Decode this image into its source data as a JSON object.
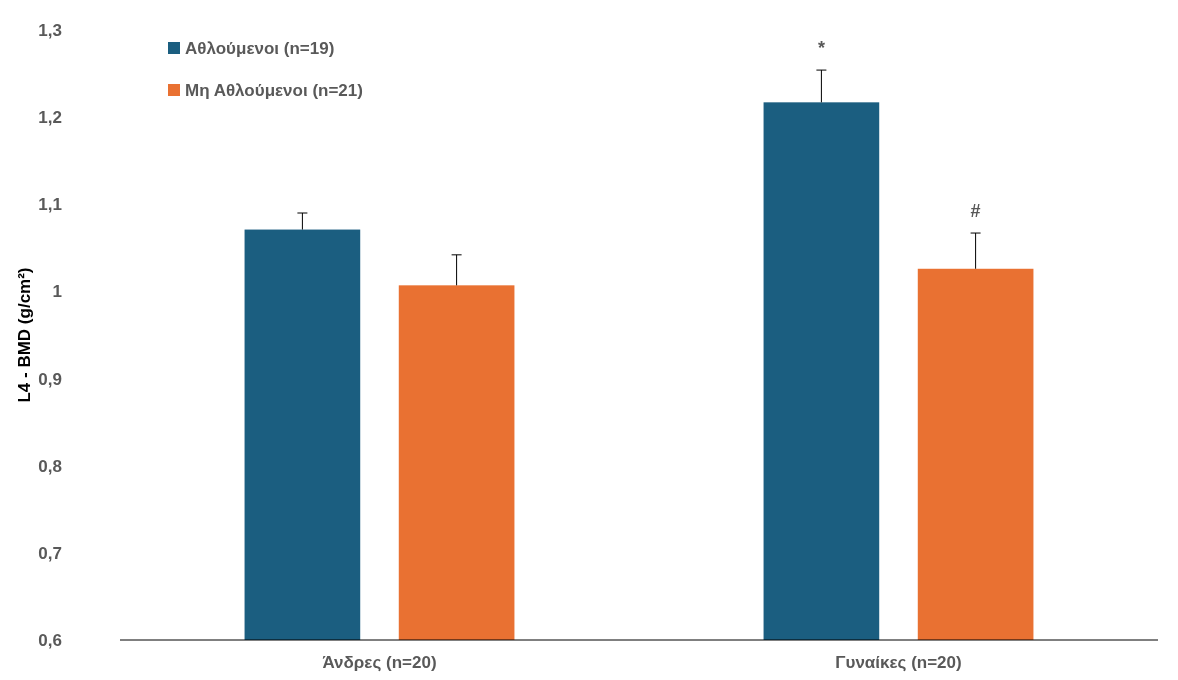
{
  "chart_data": {
    "type": "bar",
    "ylabel": "L4 - BMD (g/cm²)",
    "categories": [
      "Άνδρες (n=20)",
      "Γυναίκες (n=20)"
    ],
    "series": [
      {
        "name": "Αθλούμενοι (n=19)",
        "color": "#1b5e80",
        "values": [
          1.071,
          1.217
        ],
        "errors": [
          [
            1.071,
            1.09
          ],
          [
            1.217,
            1.254
          ]
        ]
      },
      {
        "name": "Μη Αθλούμενοι (n=21)",
        "color": "#e97132",
        "values": [
          1.007,
          1.026
        ],
        "errors": [
          [
            1.007,
            1.042
          ],
          [
            1.026,
            1.067
          ]
        ]
      }
    ],
    "ylim": [
      0.6,
      1.3
    ],
    "yticks": [
      {
        "value": 0.6,
        "label": "0,6"
      },
      {
        "value": 0.7,
        "label": "0,7"
      },
      {
        "value": 0.8,
        "label": "0,8"
      },
      {
        "value": 0.9,
        "label": "0,9"
      },
      {
        "value": 1,
        "label": "1"
      },
      {
        "value": 1.1,
        "label": "1,1"
      },
      {
        "value": 1.2,
        "label": "1,2"
      },
      {
        "value": 1.3,
        "label": "1,3"
      }
    ],
    "annotations": [
      "*",
      "#"
    ],
    "legend": "top left",
    "grid": false
  }
}
